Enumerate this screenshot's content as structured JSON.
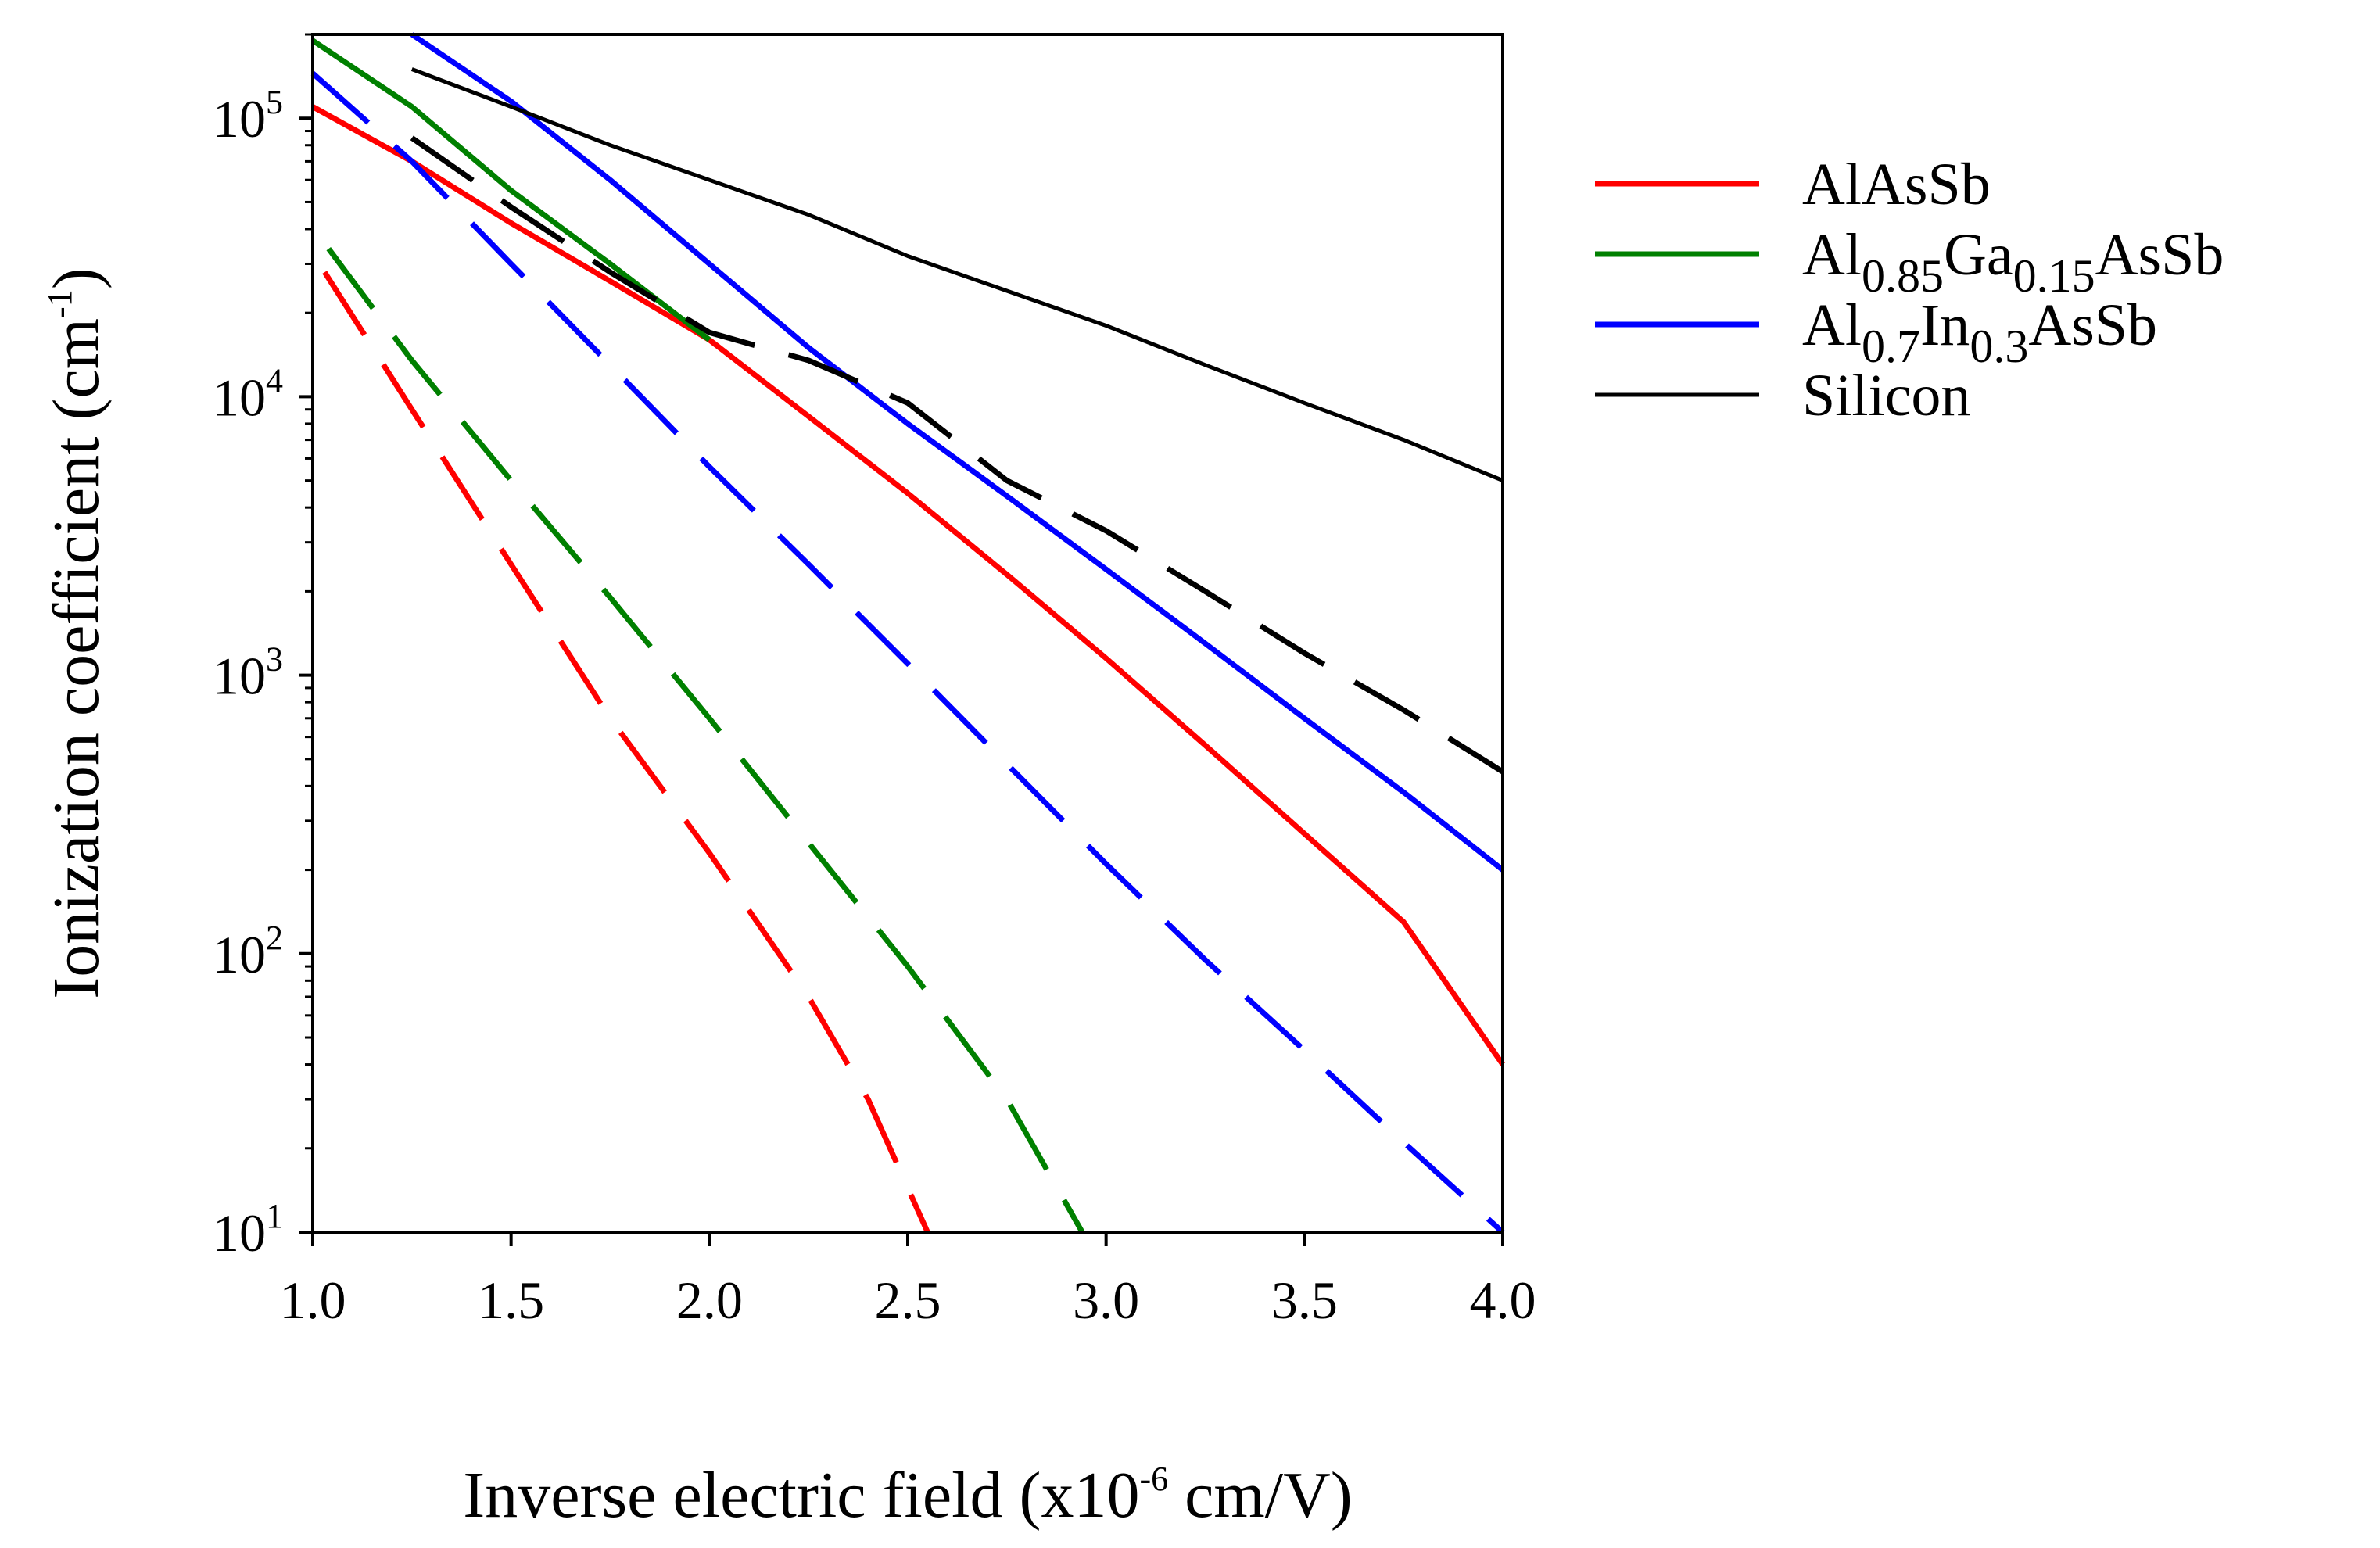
{
  "chart_data": {
    "type": "line",
    "title": "",
    "xlabel": {
      "prefix": "Inverse electric field (x10",
      "exp": "-6",
      "suffix": " cm/V)"
    },
    "ylabel": {
      "prefix": "Ionization coefficient (cm",
      "exp": "-1",
      "suffix": ")"
    },
    "xlim": [
      1.0,
      4.0
    ],
    "ylim": [
      10,
      200000
    ],
    "yscale": "log",
    "x_ticks": [
      {
        "value": 1.0,
        "label": "1.0"
      },
      {
        "value": 1.5,
        "label": "1.5"
      },
      {
        "value": 2.0,
        "label": "2.0"
      },
      {
        "value": 2.5,
        "label": "2.5"
      },
      {
        "value": 3.0,
        "label": "3.0"
      },
      {
        "value": 3.5,
        "label": "3.5"
      },
      {
        "value": 4.0,
        "label": "4.0"
      }
    ],
    "y_ticks": [
      {
        "value": 10,
        "base": "10",
        "exp": "1"
      },
      {
        "value": 100,
        "base": "10",
        "exp": "2"
      },
      {
        "value": 1000,
        "base": "10",
        "exp": "3"
      },
      {
        "value": 10000,
        "base": "10",
        "exp": "4"
      },
      {
        "value": 100000,
        "base": "10",
        "exp": "5"
      }
    ],
    "grid": false,
    "legend": {
      "position": "right",
      "entries": [
        {
          "series": "AlAsSb",
          "parts": [
            {
              "t": "AlAsSb",
              "sub": false
            }
          ]
        },
        {
          "series": "Al0.85Ga0.15AsSb",
          "parts": [
            {
              "t": "Al",
              "sub": false
            },
            {
              "t": "0.85",
              "sub": true
            },
            {
              "t": "Ga",
              "sub": false
            },
            {
              "t": "0.15",
              "sub": true
            },
            {
              "t": "AsSb",
              "sub": false
            }
          ]
        },
        {
          "series": "Al0.7In0.3AsSb",
          "parts": [
            {
              "t": "Al",
              "sub": false
            },
            {
              "t": "0.7",
              "sub": true
            },
            {
              "t": "In",
              "sub": false
            },
            {
              "t": "0.3",
              "sub": true
            },
            {
              "t": "AsSb",
              "sub": false
            }
          ]
        },
        {
          "series": "Silicon",
          "parts": [
            {
              "t": "Silicon",
              "sub": false
            }
          ]
        }
      ]
    },
    "series": [
      {
        "name": "AlAsSb",
        "kind": "electron",
        "color": "#ff0000",
        "style": "solid",
        "x": [
          1.0,
          1.25,
          1.5,
          1.75,
          2.0,
          2.25,
          2.5,
          2.75,
          3.0,
          3.25,
          3.5,
          3.75,
          4.0
        ],
        "y": [
          110000,
          70000,
          42000,
          26000,
          16000,
          8500,
          4500,
          2300,
          1150,
          560,
          270,
          130,
          40
        ]
      },
      {
        "name": "AlAsSb",
        "kind": "hole",
        "color": "#ff0000",
        "style": "dashed",
        "x": [
          1.03,
          1.25,
          1.5,
          1.75,
          2.0,
          2.25,
          2.4,
          2.55
        ],
        "y": [
          28000,
          9000,
          2500,
          700,
          230,
          70,
          30,
          10
        ]
      },
      {
        "name": "Al0.85Ga0.15AsSb",
        "kind": "electron",
        "color": "#008000",
        "style": "solid",
        "x": [
          1.0,
          1.25,
          1.5,
          1.75,
          2.0
        ],
        "y": [
          190000,
          110000,
          55000,
          30000,
          16000
        ]
      },
      {
        "name": "Al0.85Ga0.15AsSb",
        "kind": "hole",
        "color": "#008000",
        "style": "dashed",
        "x": [
          1.04,
          1.25,
          1.5,
          1.75,
          2.0,
          2.25,
          2.5,
          2.75,
          2.94
        ],
        "y": [
          34000,
          13500,
          5000,
          1900,
          700,
          250,
          90,
          30,
          10
        ]
      },
      {
        "name": "Al0.7In0.3AsSb",
        "kind": "electron",
        "color": "#0000ff",
        "style": "solid",
        "x": [
          1.25,
          1.5,
          1.75,
          2.0,
          2.25,
          2.5,
          2.75,
          3.0,
          3.25,
          3.5,
          3.75,
          4.0
        ],
        "y": [
          200000,
          115000,
          60000,
          30000,
          15000,
          8000,
          4400,
          2400,
          1300,
          700,
          380,
          200
        ]
      },
      {
        "name": "Al0.7In0.3AsSb",
        "kind": "hole",
        "color": "#0000ff",
        "style": "dashed",
        "x": [
          1.0,
          1.25,
          1.5,
          1.75,
          2.0,
          2.25,
          2.5,
          2.75,
          3.0,
          3.25,
          3.5,
          3.75,
          4.0
        ],
        "y": [
          145000,
          70000,
          30000,
          13000,
          5600,
          2500,
          1100,
          480,
          210,
          95,
          45,
          21,
          10
        ]
      },
      {
        "name": "Silicon",
        "kind": "electron",
        "color": "#000000",
        "style": "solid",
        "x": [
          1.25,
          1.5,
          1.75,
          2.0,
          2.25,
          2.5,
          2.75,
          3.0,
          3.25,
          3.5,
          3.75,
          4.0
        ],
        "y": [
          150000,
          110000,
          80000,
          60000,
          45000,
          32000,
          24000,
          18000,
          13000,
          9500,
          7000,
          5000
        ]
      },
      {
        "name": "Silicon",
        "kind": "hole",
        "color": "#000000",
        "style": "dashed",
        "x": [
          1.25,
          1.5,
          1.75,
          2.0,
          2.25,
          2.5,
          2.75,
          3.0,
          3.25,
          3.5,
          3.75,
          4.0
        ],
        "y": [
          85000,
          48000,
          28000,
          17000,
          13500,
          9500,
          5000,
          3300,
          2000,
          1200,
          750,
          450
        ]
      }
    ]
  }
}
